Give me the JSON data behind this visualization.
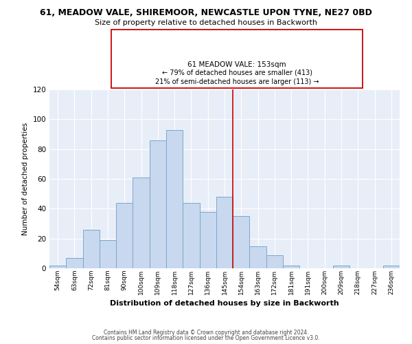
{
  "title": "61, MEADOW VALE, SHIREMOOR, NEWCASTLE UPON TYNE, NE27 0BD",
  "subtitle": "Size of property relative to detached houses in Backworth",
  "xlabel": "Distribution of detached houses by size in Backworth",
  "ylabel": "Number of detached properties",
  "bar_labels": [
    "54sqm",
    "63sqm",
    "72sqm",
    "81sqm",
    "90sqm",
    "100sqm",
    "109sqm",
    "118sqm",
    "127sqm",
    "136sqm",
    "145sqm",
    "154sqm",
    "163sqm",
    "172sqm",
    "181sqm",
    "191sqm",
    "200sqm",
    "209sqm",
    "218sqm",
    "227sqm",
    "236sqm"
  ],
  "bar_heights": [
    2,
    7,
    26,
    19,
    44,
    61,
    86,
    93,
    44,
    38,
    48,
    35,
    15,
    9,
    2,
    0,
    0,
    2,
    0,
    0,
    2
  ],
  "bar_color": "#c8d8ee",
  "bar_edge_color": "#7aa8cc",
  "vertical_line_color": "#cc0000",
  "annotation_box_edge_color": "#cc0000",
  "annotation_box_color": "#ffffff",
  "annotation_line1": "61 MEADOW VALE: 153sqm",
  "annotation_line2": "← 79% of detached houses are smaller (413)",
  "annotation_line3": "21% of semi-detached houses are larger (113) →",
  "ylim": [
    0,
    120
  ],
  "yticks": [
    0,
    20,
    40,
    60,
    80,
    100,
    120
  ],
  "plot_bg_color": "#e8eef8",
  "grid_color": "#ffffff",
  "footer_line1": "Contains HM Land Registry data © Crown copyright and database right 2024.",
  "footer_line2": "Contains public sector information licensed under the Open Government Licence v3.0."
}
